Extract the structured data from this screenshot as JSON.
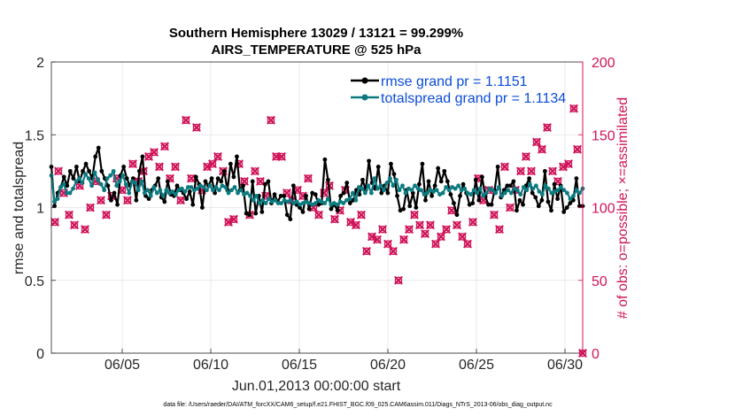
{
  "chart_data": {
    "type": "line",
    "title_line1": "Southern Hemisphere 13029 / 13121 = 99.299%",
    "title_line2": "AIRS_TEMPERATURE @ 525 hPa",
    "xlabel": "Jun.01,2013 00:00:00 start",
    "ylabel": "rmse and totalspread",
    "y2label": "# of obs: o=possible; ×=assimilated",
    "xlim": [
      1,
      31
    ],
    "ylim": [
      0,
      2
    ],
    "y2lim": [
      0,
      200
    ],
    "xticks": [
      5,
      10,
      15,
      20,
      25,
      30
    ],
    "xtick_labels": [
      "06/05",
      "06/10",
      "06/15",
      "06/20",
      "06/25",
      "06/30"
    ],
    "yticks": [
      0,
      0.5,
      1,
      1.5,
      2
    ],
    "ytick_labels": [
      "0",
      "0.5",
      "1",
      "1.5",
      "2"
    ],
    "y2ticks": [
      0,
      50,
      100,
      150,
      200
    ],
    "y2tick_labels": [
      "0",
      "50",
      "100",
      "150",
      "200"
    ],
    "grid": true,
    "legend_position": "top-right",
    "colors": {
      "rmse": "#000000",
      "spread": "#0b7b80",
      "obs": "#d0145a",
      "accent": "#0b4dd8"
    },
    "series": [
      {
        "name": "rmse grand pr = 1.1151",
        "color": "#000000",
        "values": [
          1.28,
          1.01,
          1.1,
          1.14,
          1.21,
          1.15,
          1.25,
          1.2,
          1.28,
          1.18,
          1.25,
          1.3,
          1.25,
          1.2,
          1.35,
          1.41,
          1.25,
          1.2,
          1.15,
          1.05,
          1.1,
          1.02,
          1.22,
          1.28,
          1.2,
          1.15,
          1.2,
          1.05,
          1.25,
          1.35,
          1.08,
          1.06,
          1.12,
          1.15,
          1.2,
          1.07,
          1.04,
          1.18,
          1.09,
          1.08,
          1.15,
          1.12,
          1.1,
          1.06,
          1.11,
          1.02,
          1.21,
          1.16,
          1.0,
          1.18,
          1.15,
          1.2,
          1.1,
          1.2,
          1.18,
          1.25,
          1.12,
          1.3,
          1.21,
          1.35,
          1.12,
          1.15,
          0.96,
          0.95,
          1.18,
          0.96,
          1.08,
          0.97,
          1.16,
          1.18,
          1.03,
          1.09,
          1.04,
          1.08,
          1.08,
          0.95,
          0.92,
          1.15,
          1.02,
          1.0,
          0.97,
          1.08,
          0.99,
          1.1,
          1.09,
          1.02,
          1.03,
          1.33,
          1.19,
          0.99,
          1.02,
          0.98,
          1.08,
          1.1,
          1.17,
          1.03,
          1.05,
          1.12,
          1.09,
          1.19,
          1.12,
          1.32,
          1.17,
          1.13,
          1.28,
          1.1,
          1.15,
          1.1,
          1.3,
          1.23,
          1.08,
          0.98,
          0.99,
          1.12,
          1.01,
          1.1,
          1.0,
          1.16,
          1.3,
          1.05,
          1.18,
          1.08,
          1.15,
          1.27,
          1.18,
          1.25,
          1.18,
          1.09,
          1.03,
          0.95,
          1.08,
          1.16,
          1.1,
          1.02,
          1.03,
          1.19,
          1.05,
          1.21,
          1.08,
          1.02,
          1.02,
          1.12,
          1.28,
          1.07,
          1.12,
          1.15,
          1.15,
          1.18,
          0.98,
          1.05,
          1.02,
          1.15,
          1.2,
          1.1,
          1.07,
          1.01,
          1.05,
          1.25,
          1.04,
          0.98,
          1.16,
          1.06,
          1.15,
          0.97,
          1.0,
          1.03,
          1.05,
          1.2,
          1.01,
          1.01
        ]
      },
      {
        "name": "totalspread grand pr = 1.1134",
        "color": "#0b7b80",
        "values": [
          1.22,
          1.04,
          1.06,
          1.14,
          1.16,
          1.1,
          1.1,
          1.13,
          1.18,
          1.2,
          1.17,
          1.23,
          1.2,
          1.15,
          1.24,
          1.19,
          1.16,
          1.12,
          1.2,
          1.22,
          1.25,
          1.15,
          1.18,
          1.22,
          1.16,
          1.1,
          1.18,
          1.17,
          1.12,
          1.18,
          1.1,
          1.12,
          1.08,
          1.14,
          1.1,
          1.12,
          1.08,
          1.12,
          1.1,
          1.11,
          1.09,
          1.12,
          1.13,
          1.11,
          1.14,
          1.14,
          1.12,
          1.13,
          1.15,
          1.14,
          1.12,
          1.15,
          1.12,
          1.14,
          1.12,
          1.15,
          1.14,
          1.1,
          1.12,
          1.14,
          1.1,
          1.12,
          1.09,
          1.1,
          1.08,
          1.05,
          1.08,
          1.03,
          1.05,
          1.03,
          1.06,
          1.04,
          1.05,
          1.03,
          1.03,
          1.05,
          1.04,
          1.05,
          1.03,
          1.04,
          1.02,
          1.03,
          1.04,
          1.03,
          1.02,
          1.03,
          1.05,
          1.04,
          1.03,
          1.06,
          1.02,
          1.03,
          1.02,
          1.04,
          1.03,
          1.05,
          1.06,
          1.1,
          1.05,
          1.14,
          1.13,
          1.1,
          1.15,
          1.1,
          1.2,
          1.13,
          1.15,
          1.12,
          1.17,
          1.2,
          1.15,
          1.19,
          1.12,
          1.15,
          1.1,
          1.13,
          1.12,
          1.15,
          1.13,
          1.12,
          1.09,
          1.1,
          1.12,
          1.11,
          1.12,
          1.09,
          1.1,
          1.14,
          1.12,
          1.14,
          1.13,
          1.15,
          1.12,
          1.13,
          1.1,
          1.09,
          1.12,
          1.1,
          1.13,
          1.08,
          1.1,
          1.13,
          1.12,
          1.1,
          1.14,
          1.08,
          1.1,
          1.12,
          1.1,
          1.13,
          1.12,
          1.09,
          1.14,
          1.12,
          1.16,
          1.13,
          1.15,
          1.11,
          1.09,
          1.15,
          1.13,
          1.1,
          1.11,
          1.12,
          1.14,
          1.12,
          1.1,
          1.06,
          1.08,
          1.12,
          1.1,
          1.13
        ]
      }
    ],
    "obs_possible": [
      [
        1.2,
        90
      ],
      [
        1.4,
        125
      ],
      [
        1.7,
        110
      ],
      [
        2.0,
        95
      ],
      [
        2.3,
        88
      ],
      [
        2.6,
        115
      ],
      [
        2.9,
        85
      ],
      [
        3.2,
        100
      ],
      [
        3.5,
        118
      ],
      [
        3.8,
        105
      ],
      [
        4.1,
        95
      ],
      [
        4.4,
        108
      ],
      [
        4.7,
        120
      ],
      [
        5.0,
        112
      ],
      [
        5.3,
        105
      ],
      [
        5.6,
        130
      ],
      [
        5.9,
        118
      ],
      [
        6.2,
        125
      ],
      [
        6.5,
        135
      ],
      [
        6.8,
        138
      ],
      [
        7.1,
        128
      ],
      [
        7.4,
        142
      ],
      [
        7.7,
        120
      ],
      [
        8.0,
        128
      ],
      [
        8.3,
        105
      ],
      [
        8.6,
        160
      ],
      [
        8.9,
        120
      ],
      [
        9.2,
        155
      ],
      [
        9.5,
        112
      ],
      [
        9.8,
        128
      ],
      [
        10.1,
        130
      ],
      [
        10.4,
        135
      ],
      [
        10.7,
        125
      ],
      [
        11.0,
        90
      ],
      [
        11.3,
        92
      ],
      [
        11.6,
        130
      ],
      [
        11.9,
        118
      ],
      [
        12.2,
        95
      ],
      [
        12.5,
        125
      ],
      [
        12.8,
        118
      ],
      [
        13.1,
        108
      ],
      [
        13.4,
        160
      ],
      [
        13.7,
        135
      ],
      [
        14.0,
        135
      ],
      [
        14.3,
        110
      ],
      [
        14.6,
        105
      ],
      [
        14.9,
        112
      ],
      [
        15.2,
        108
      ],
      [
        15.5,
        120
      ],
      [
        15.8,
        100
      ],
      [
        16.1,
        95
      ],
      [
        16.4,
        110
      ],
      [
        16.7,
        115
      ],
      [
        17.0,
        92
      ],
      [
        17.3,
        98
      ],
      [
        17.6,
        112
      ],
      [
        17.9,
        90
      ],
      [
        18.2,
        88
      ],
      [
        18.5,
        95
      ],
      [
        18.8,
        70
      ],
      [
        19.1,
        80
      ],
      [
        19.4,
        78
      ],
      [
        19.7,
        85
      ],
      [
        20.0,
        75
      ],
      [
        20.3,
        70
      ],
      [
        20.6,
        50
      ],
      [
        20.9,
        78
      ],
      [
        21.2,
        85
      ],
      [
        21.5,
        95
      ],
      [
        21.8,
        88
      ],
      [
        22.1,
        82
      ],
      [
        22.4,
        88
      ],
      [
        22.7,
        75
      ],
      [
        23.0,
        80
      ],
      [
        23.3,
        85
      ],
      [
        23.6,
        98
      ],
      [
        23.9,
        88
      ],
      [
        24.2,
        80
      ],
      [
        24.5,
        75
      ],
      [
        24.8,
        90
      ],
      [
        25.1,
        120
      ],
      [
        25.4,
        105
      ],
      [
        25.7,
        112
      ],
      [
        26.0,
        95
      ],
      [
        26.3,
        85
      ],
      [
        26.6,
        128
      ],
      [
        26.9,
        100
      ],
      [
        27.2,
        112
      ],
      [
        27.5,
        125
      ],
      [
        27.8,
        135
      ],
      [
        28.1,
        125
      ],
      [
        28.4,
        145
      ],
      [
        28.7,
        140
      ],
      [
        29.0,
        155
      ],
      [
        29.3,
        125
      ],
      [
        29.6,
        118
      ],
      [
        29.9,
        128
      ],
      [
        30.2,
        130
      ],
      [
        30.5,
        168
      ],
      [
        30.7,
        140
      ],
      [
        31.0,
        0
      ]
    ]
  },
  "legend": {
    "rmse_label": "rmse grand pr = 1.1151",
    "spread_label": "totalspread grand pr = 1.1134"
  },
  "footnote": "data file: /Users/raeder/DAI/ATM_forcXX/CAM6_setup/f.e21.FHIST_BGC.f09_025.CAM6assim.011/Diags_NTrS_2013-06/obs_diag_output.nc"
}
